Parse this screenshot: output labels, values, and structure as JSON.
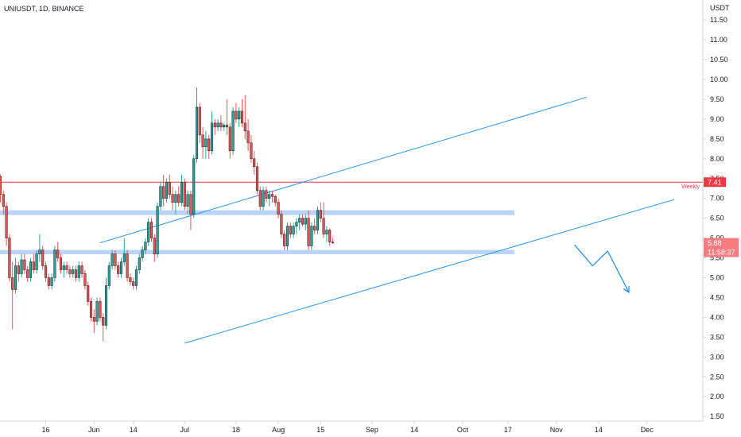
{
  "chart_data": {
    "type": "candlestick",
    "title": "UNIUSDT, 1D, BINANCE",
    "y_unit_label": "USDT",
    "ylim": [
      1.3,
      12.2
    ],
    "y_ticks": [
      "11.50",
      "11.00",
      "10.50",
      "10.00",
      "9.50",
      "9.00",
      "8.50",
      "8.00",
      "7.50",
      "7.00",
      "6.50",
      "6.00",
      "5.50",
      "5.00",
      "4.50",
      "4.00",
      "3.50",
      "3.00",
      "2.50",
      "2.00",
      "1.50"
    ],
    "x_ticks": [
      "16",
      "Jun",
      "14",
      "Jul",
      "18",
      "Aug",
      "15",
      "Sep",
      "14",
      "Oct",
      "17",
      "Nov",
      "14",
      "Dec"
    ],
    "x_tick_days": [
      15,
      31,
      44,
      61,
      78,
      92,
      106,
      123,
      137,
      153,
      168,
      184,
      198,
      214
    ],
    "first_candle_day": 0,
    "colors": {
      "up": "#26a69a",
      "down": "#ef5350",
      "line": "#2196f3",
      "resistance": "#f23645",
      "zone": "#bbd3f5"
    },
    "candles": [
      [
        7.55,
        7.6,
        6.9,
        7.1
      ],
      [
        7.1,
        7.2,
        6.6,
        6.8
      ],
      [
        6.8,
        6.9,
        5.8,
        6.0
      ],
      [
        6.0,
        6.1,
        4.9,
        5.0
      ],
      [
        5.0,
        5.4,
        3.7,
        4.7
      ],
      [
        4.7,
        5.5,
        4.6,
        5.3
      ],
      [
        5.3,
        5.4,
        4.9,
        5.1
      ],
      [
        5.1,
        5.6,
        5.0,
        5.45
      ],
      [
        5.45,
        5.6,
        5.1,
        5.2
      ],
      [
        5.2,
        5.3,
        4.9,
        5.0
      ],
      [
        5.0,
        5.5,
        4.9,
        5.4
      ],
      [
        5.4,
        5.6,
        5.1,
        5.2
      ],
      [
        5.2,
        5.7,
        5.1,
        5.6
      ],
      [
        5.6,
        6.1,
        5.4,
        5.7
      ],
      [
        5.7,
        5.8,
        5.2,
        5.3
      ],
      [
        5.3,
        5.4,
        4.9,
        5.0
      ],
      [
        5.0,
        5.1,
        4.7,
        4.8
      ],
      [
        4.8,
        5.1,
        4.7,
        5.0
      ],
      [
        5.0,
        5.8,
        4.9,
        5.7
      ],
      [
        5.7,
        5.9,
        5.4,
        5.5
      ],
      [
        5.5,
        5.6,
        5.1,
        5.2
      ],
      [
        5.2,
        5.4,
        5.0,
        5.3
      ],
      [
        5.3,
        5.4,
        5.1,
        5.2
      ],
      [
        5.2,
        5.3,
        5.0,
        5.1
      ],
      [
        5.1,
        5.3,
        5.0,
        5.2
      ],
      [
        5.2,
        5.3,
        4.9,
        5.0
      ],
      [
        5.0,
        5.4,
        4.9,
        5.3
      ],
      [
        5.3,
        5.4,
        5.0,
        5.1
      ],
      [
        5.1,
        5.2,
        4.7,
        4.8
      ],
      [
        4.8,
        4.9,
        4.3,
        4.4
      ],
      [
        4.4,
        4.5,
        3.9,
        4.0
      ],
      [
        4.0,
        4.2,
        3.6,
        3.9
      ],
      [
        3.9,
        4.5,
        3.8,
        4.4
      ],
      [
        4.4,
        4.5,
        3.9,
        4.0
      ],
      [
        4.0,
        4.1,
        3.4,
        3.8
      ],
      [
        3.8,
        5.0,
        3.7,
        4.8
      ],
      [
        4.8,
        5.4,
        4.7,
        5.3
      ],
      [
        5.3,
        5.7,
        5.2,
        5.6
      ],
      [
        5.6,
        5.7,
        5.2,
        5.3
      ],
      [
        5.3,
        5.4,
        5.0,
        5.1
      ],
      [
        5.1,
        5.5,
        5.0,
        5.4
      ],
      [
        5.4,
        6.0,
        5.3,
        5.6
      ],
      [
        5.6,
        5.7,
        4.9,
        5.0
      ],
      [
        5.0,
        5.1,
        4.8,
        4.9
      ],
      [
        4.9,
        5.0,
        4.7,
        4.8
      ],
      [
        4.8,
        5.3,
        4.7,
        5.2
      ],
      [
        5.2,
        5.6,
        5.1,
        5.5
      ],
      [
        5.5,
        5.8,
        5.4,
        5.7
      ],
      [
        5.7,
        6.0,
        5.6,
        5.9
      ],
      [
        5.9,
        6.5,
        5.8,
        6.4
      ],
      [
        6.4,
        6.5,
        5.9,
        6.0
      ],
      [
        6.0,
        6.1,
        5.4,
        5.6
      ],
      [
        5.6,
        6.9,
        5.5,
        6.8
      ],
      [
        6.8,
        7.4,
        6.7,
        7.3
      ],
      [
        7.3,
        7.6,
        6.8,
        7.0
      ],
      [
        7.0,
        7.5,
        6.9,
        7.4
      ],
      [
        7.4,
        7.6,
        7.0,
        7.1
      ],
      [
        7.1,
        7.3,
        6.7,
        6.9
      ],
      [
        6.9,
        7.2,
        6.6,
        7.1
      ],
      [
        7.1,
        7.3,
        6.8,
        6.9
      ],
      [
        6.9,
        7.6,
        6.8,
        7.4
      ],
      [
        7.4,
        7.5,
        6.7,
        6.8
      ],
      [
        6.8,
        7.2,
        6.6,
        7.1
      ],
      [
        7.1,
        7.2,
        6.2,
        6.6
      ],
      [
        6.6,
        8.1,
        6.5,
        8.0
      ],
      [
        8.0,
        9.8,
        7.9,
        9.3
      ],
      [
        9.3,
        9.4,
        8.4,
        8.6
      ],
      [
        8.6,
        8.8,
        8.0,
        8.3
      ],
      [
        8.3,
        8.7,
        8.0,
        8.5
      ],
      [
        8.5,
        8.6,
        8.0,
        8.2
      ],
      [
        8.2,
        9.2,
        8.1,
        8.9
      ],
      [
        8.9,
        9.0,
        8.6,
        8.8
      ],
      [
        8.8,
        9.0,
        8.7,
        8.9
      ],
      [
        8.9,
        9.1,
        8.7,
        8.8
      ],
      [
        8.8,
        8.9,
        8.7,
        8.85
      ],
      [
        8.85,
        9.5,
        8.6,
        8.8
      ],
      [
        8.8,
        8.9,
        8.0,
        8.2
      ],
      [
        8.2,
        9.3,
        8.1,
        9.2
      ],
      [
        9.2,
        9.4,
        8.9,
        9.0
      ],
      [
        9.0,
        9.3,
        8.8,
        9.2
      ],
      [
        9.2,
        9.5,
        8.8,
        8.9
      ],
      [
        8.9,
        9.6,
        8.5,
        8.7
      ],
      [
        8.7,
        9.0,
        8.2,
        8.4
      ],
      [
        8.4,
        8.6,
        7.9,
        8.0
      ],
      [
        8.0,
        8.2,
        7.6,
        7.8
      ],
      [
        7.8,
        7.9,
        7.1,
        7.2
      ],
      [
        7.2,
        7.3,
        6.7,
        6.8
      ],
      [
        6.8,
        7.3,
        6.7,
        7.2
      ],
      [
        7.2,
        7.3,
        6.9,
        7.0
      ],
      [
        7.0,
        7.2,
        6.8,
        7.1
      ],
      [
        7.1,
        7.2,
        6.9,
        7.05
      ],
      [
        7.05,
        7.1,
        6.8,
        6.9
      ],
      [
        6.9,
        7.0,
        6.5,
        6.6
      ],
      [
        6.6,
        6.7,
        6.0,
        6.1
      ],
      [
        6.1,
        6.2,
        5.7,
        5.8
      ],
      [
        5.8,
        6.4,
        5.7,
        6.3
      ],
      [
        6.3,
        6.4,
        6.0,
        6.1
      ],
      [
        6.1,
        6.4,
        6.0,
        6.3
      ],
      [
        6.3,
        6.5,
        6.1,
        6.4
      ],
      [
        6.4,
        6.6,
        6.2,
        6.5
      ],
      [
        6.5,
        6.6,
        6.3,
        6.35
      ],
      [
        6.35,
        6.6,
        6.2,
        6.5
      ],
      [
        6.5,
        6.7,
        5.7,
        5.8
      ],
      [
        5.8,
        6.4,
        5.7,
        6.3
      ],
      [
        6.3,
        6.5,
        6.1,
        6.2
      ],
      [
        6.2,
        6.8,
        6.1,
        6.7
      ],
      [
        6.7,
        6.9,
        6.4,
        6.5
      ],
      [
        6.5,
        6.9,
        6.0,
        6.1
      ],
      [
        6.1,
        6.3,
        5.9,
        6.2
      ],
      [
        6.2,
        6.25,
        5.8,
        5.9
      ],
      [
        5.9,
        6.0,
        5.85,
        5.88
      ]
    ],
    "price_badges": [
      {
        "kind": "weekly-resistance",
        "value": 7.41,
        "label": "7.41",
        "tag": "Weekly"
      },
      {
        "kind": "last-price",
        "value": 5.88,
        "label": "5.88",
        "countdown": "11:58:37"
      }
    ],
    "horizontal_zones": [
      {
        "low": 6.58,
        "high": 6.7
      },
      {
        "low": 5.59,
        "high": 5.7
      }
    ],
    "trend_lines": [
      {
        "from": [
          33,
          5.88
        ],
        "to": [
          194,
          9.55
        ]
      },
      {
        "from": [
          61,
          3.35
        ],
        "to": [
          223,
          6.97
        ]
      }
    ],
    "projection_path": [
      [
        190,
        5.83
      ],
      [
        196,
        5.3
      ],
      [
        201,
        5.67
      ],
      [
        208,
        4.63
      ]
    ]
  }
}
